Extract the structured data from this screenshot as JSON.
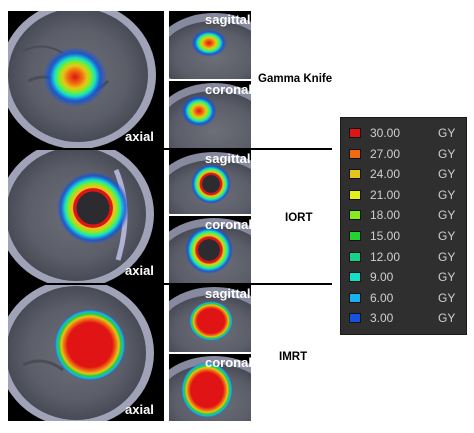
{
  "rows": [
    {
      "technique": "Gamma Knife",
      "axial": "axial",
      "sagittal": "sagittal",
      "coronal": "coronal"
    },
    {
      "technique": "IORT",
      "axial": "axial",
      "sagittal": "sagittal",
      "coronal": "coronal"
    },
    {
      "technique": "IMRT",
      "axial": "axial",
      "sagittal": "sagittal",
      "coronal": "coronal"
    }
  ],
  "legend": [
    {
      "value": "30.00",
      "unit": "GY",
      "color": "#e01414"
    },
    {
      "value": "27.00",
      "unit": "GY",
      "color": "#f06a10"
    },
    {
      "value": "24.00",
      "unit": "GY",
      "color": "#e6c51a"
    },
    {
      "value": "21.00",
      "unit": "GY",
      "color": "#e2ee22"
    },
    {
      "value": "18.00",
      "unit": "GY",
      "color": "#86ec1e"
    },
    {
      "value": "15.00",
      "unit": "GY",
      "color": "#24d230"
    },
    {
      "value": "12.00",
      "unit": "GY",
      "color": "#14d48a"
    },
    {
      "value": "9.00",
      "unit": "GY",
      "color": "#14e2c8"
    },
    {
      "value": "6.00",
      "unit": "GY",
      "color": "#18b2ee"
    },
    {
      "value": "3.00",
      "unit": "GY",
      "color": "#1452e0"
    }
  ]
}
